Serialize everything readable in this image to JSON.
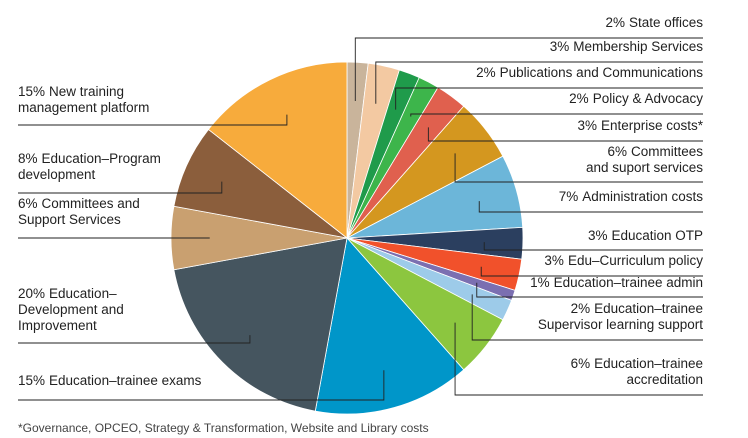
{
  "chart_data": {
    "type": "pie",
    "categories": [
      "State offices",
      "Membership Services",
      "Publications and Communications",
      "Policy & Advocacy",
      "Enterprise costs*",
      "Committees\nand suport services",
      "Administration costs",
      "Education OTP",
      "Edu–Curriculum policy",
      "Education–trainee admin",
      "Education–trainee\nSupervisor learning support",
      "Education–trainee\naccreditation",
      "Education–trainee exams",
      "Education–\nDevelopment and\nImprovement",
      "Committees and\nSupport Services",
      "Education–Program\ndevelopment",
      "New training\nmanagement platform"
    ],
    "values": [
      2,
      3,
      2,
      2,
      3,
      6,
      7,
      3,
      3,
      1,
      2,
      6,
      15,
      20,
      6,
      8,
      15
    ],
    "value_labels": [
      "2%",
      "3%",
      "2%",
      "2%",
      "3%",
      "6%",
      "7%",
      "3%",
      "3%",
      "1%",
      "2%",
      "6%",
      "15%",
      "20%",
      "6%",
      "8%",
      "15%"
    ],
    "colors": [
      "#c9b49b",
      "#f3c9a2",
      "#1f9b4b",
      "#3db54b",
      "#e0604e",
      "#d4971f",
      "#6cb6d9",
      "#2b3f5f",
      "#f1512b",
      "#7b6fb1",
      "#9dcbe9",
      "#8cc63f",
      "#0096c9",
      "#45555f",
      "#c9a070",
      "#8b5e3c",
      "#f7ab3c"
    ],
    "note": "*Governance, OPCEO, Strategy & Transformation, Website and Library costs"
  }
}
